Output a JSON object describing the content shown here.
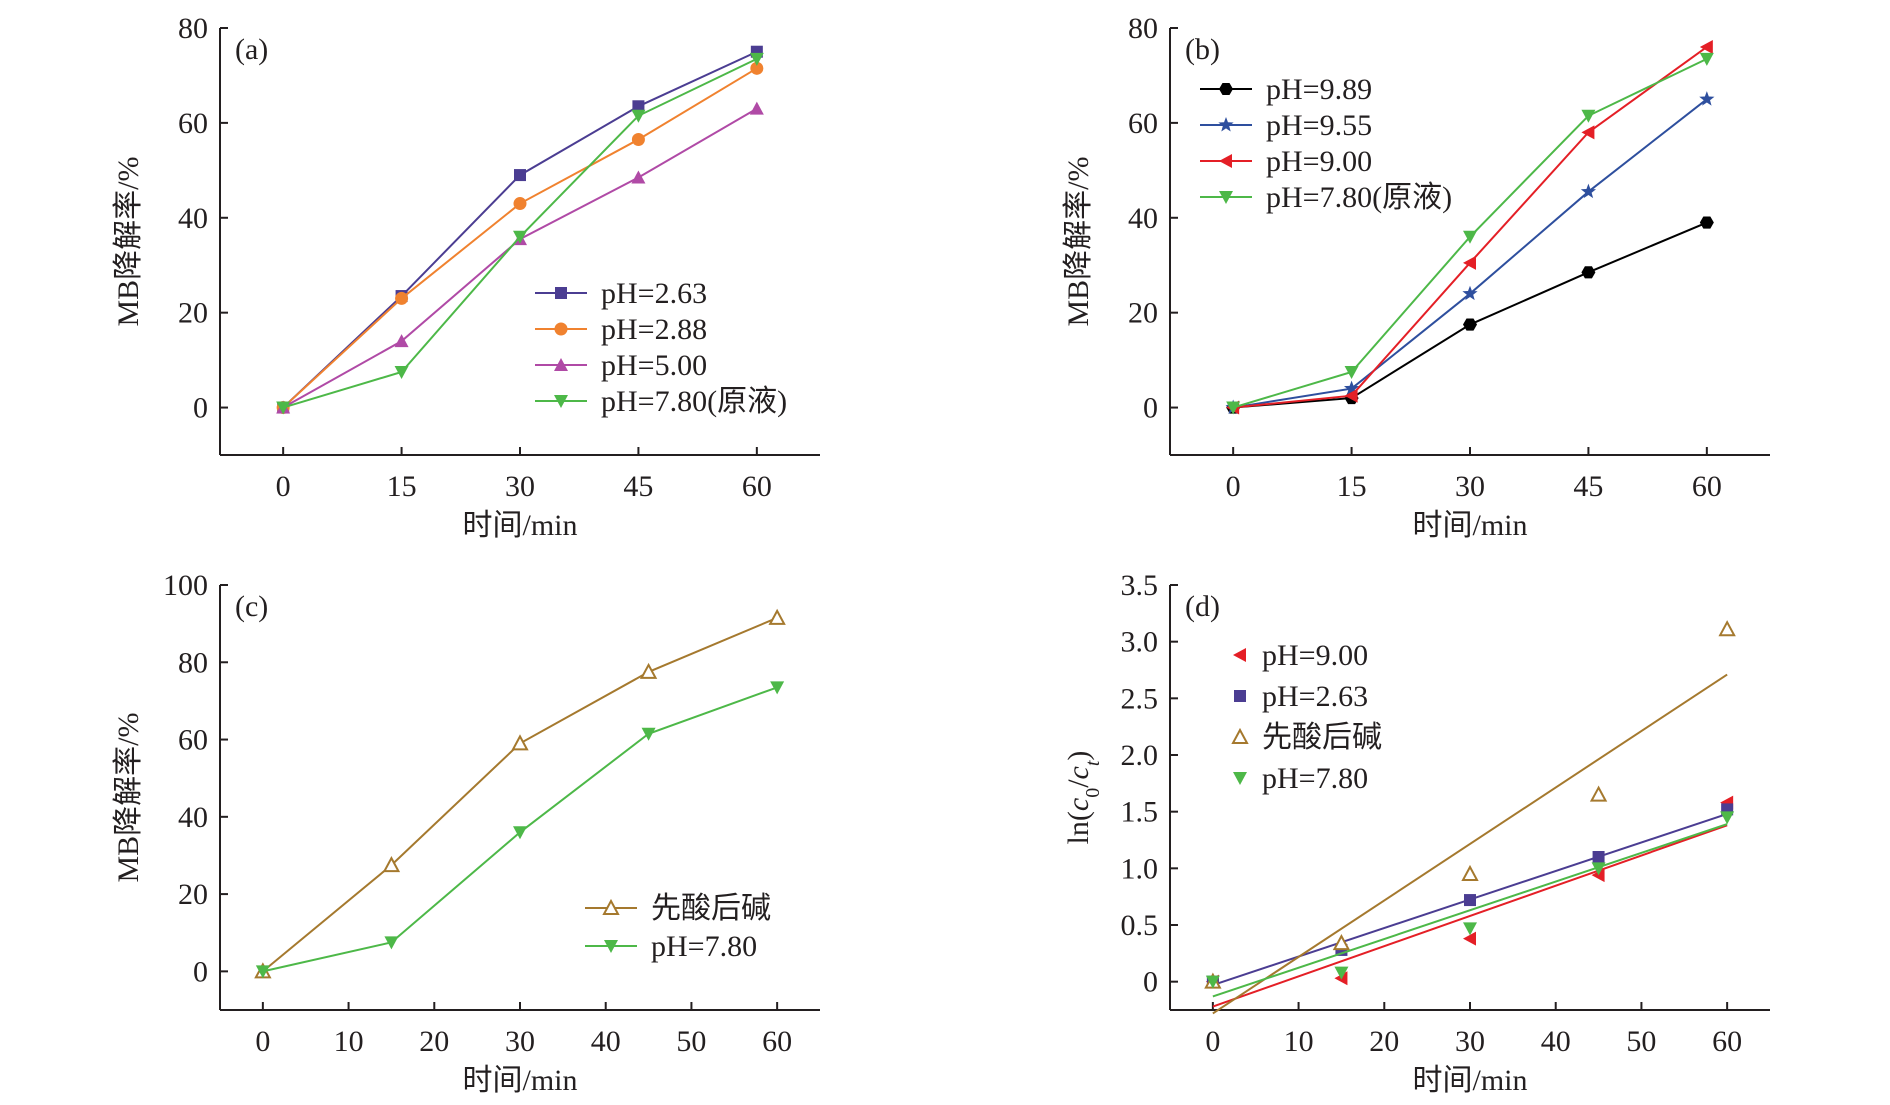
{
  "chart_data": [
    {
      "id": "a",
      "type": "line",
      "panel_label": "(a)",
      "xlabel": "时间/min",
      "ylabel": "MB降解率/%",
      "xlim": [
        -8,
        68
      ],
      "ylim": [
        -10,
        80
      ],
      "xticks": [
        0,
        15,
        30,
        45,
        60
      ],
      "yticks": [
        0,
        20,
        40,
        60,
        80
      ],
      "grid": false,
      "legend_position": "center-right",
      "x": [
        0,
        15,
        30,
        45,
        60
      ],
      "series": [
        {
          "name": "pH=2.63",
          "color": "#4b3d92",
          "marker": "square",
          "values": [
            0,
            23.5,
            49.0,
            63.5,
            75.0
          ]
        },
        {
          "name": "pH=2.88",
          "color": "#f0822f",
          "marker": "circle",
          "values": [
            0,
            23.0,
            43.0,
            56.5,
            71.5
          ]
        },
        {
          "name": "pH=5.00",
          "color": "#b04aa6",
          "marker": "triangle-up",
          "values": [
            0,
            14.0,
            35.5,
            48.5,
            63.0
          ]
        },
        {
          "name": "pH=7.80(原液)",
          "color": "#4db848",
          "marker": "triangle-down",
          "values": [
            0,
            7.5,
            36.0,
            61.5,
            73.5
          ]
        }
      ]
    },
    {
      "id": "b",
      "type": "line",
      "panel_label": "(b)",
      "xlabel": "时间/min",
      "ylabel": "MB降解率/%",
      "xlim": [
        -8,
        68
      ],
      "ylim": [
        -10,
        80
      ],
      "xticks": [
        0,
        15,
        30,
        45,
        60
      ],
      "yticks": [
        0,
        20,
        40,
        60,
        80
      ],
      "grid": false,
      "legend_position": "top-left",
      "x": [
        0,
        15,
        30,
        45,
        60
      ],
      "series": [
        {
          "name": "pH=9.89",
          "color": "#000000",
          "marker": "hexagon",
          "values": [
            0,
            2.0,
            17.5,
            28.5,
            39.0
          ]
        },
        {
          "name": "pH=9.55",
          "color": "#2e4f9e",
          "marker": "star",
          "values": [
            0,
            4.0,
            24.0,
            45.5,
            65.0
          ]
        },
        {
          "name": "pH=9.00",
          "color": "#e41f26",
          "marker": "triangle-left",
          "values": [
            0,
            2.5,
            30.5,
            58.0,
            76.0
          ]
        },
        {
          "name": "pH=7.80(原液)",
          "color": "#4db848",
          "marker": "triangle-down",
          "values": [
            0,
            7.5,
            36.0,
            61.5,
            73.5
          ]
        }
      ]
    },
    {
      "id": "c",
      "type": "line",
      "panel_label": "(c)",
      "xlabel": "时间/min",
      "ylabel": "MB降解率/%",
      "xlim": [
        -5,
        65
      ],
      "ylim": [
        -10,
        100
      ],
      "xticks": [
        0,
        10,
        20,
        30,
        40,
        50,
        60
      ],
      "yticks": [
        0,
        20,
        40,
        60,
        80,
        100
      ],
      "grid": false,
      "legend_position": "bottom-right",
      "x": [
        0,
        15,
        30,
        45,
        60
      ],
      "series": [
        {
          "name": "先酸后碱",
          "color": "#a5792e",
          "marker": "triangle-up-open",
          "values": [
            0,
            27.5,
            59.0,
            77.5,
            91.5
          ]
        },
        {
          "name": "pH=7.80",
          "color": "#4db848",
          "marker": "triangle-down",
          "values": [
            0,
            7.5,
            36.0,
            61.5,
            73.5
          ]
        }
      ]
    },
    {
      "id": "d",
      "type": "scatter",
      "panel_label": "(d)",
      "xlabel": "时间/min",
      "ylabel": "ln(c0/ct)",
      "xlim": [
        -5,
        65
      ],
      "ylim": [
        -0.25,
        3.5
      ],
      "xticks": [
        0,
        10,
        20,
        30,
        40,
        50,
        60
      ],
      "yticks": [
        0,
        0.5,
        1.0,
        1.5,
        2.0,
        2.5,
        3.0,
        3.5
      ],
      "ytick_labels": [
        "0",
        "0.5",
        "1.0",
        "1.5",
        "2.0",
        "2.5",
        "3.0",
        "3.5"
      ],
      "grid": false,
      "legend_position": "top-left",
      "x": [
        0,
        15,
        30,
        45,
        60
      ],
      "series": [
        {
          "name": "pH=9.00",
          "color": "#e41f26",
          "marker": "triangle-left",
          "values": [
            0,
            0.03,
            0.38,
            0.94,
            1.58
          ],
          "fit": [
            -0.22,
            1.38
          ]
        },
        {
          "name": "pH=2.63",
          "color": "#4b3d92",
          "marker": "square",
          "values": [
            0,
            0.28,
            0.72,
            1.1,
            1.52
          ],
          "fit": [
            -0.03,
            1.48
          ]
        },
        {
          "name": "先酸后碱",
          "color": "#a5792e",
          "marker": "triangle-up-open",
          "values": [
            0,
            0.34,
            0.95,
            1.65,
            3.11
          ],
          "fit": [
            -0.28,
            2.71
          ]
        },
        {
          "name": "pH=7.80",
          "color": "#4db848",
          "marker": "triangle-down",
          "values": [
            0,
            0.08,
            0.47,
            1.0,
            1.45
          ],
          "fit": [
            -0.13,
            1.39
          ]
        }
      ]
    }
  ]
}
